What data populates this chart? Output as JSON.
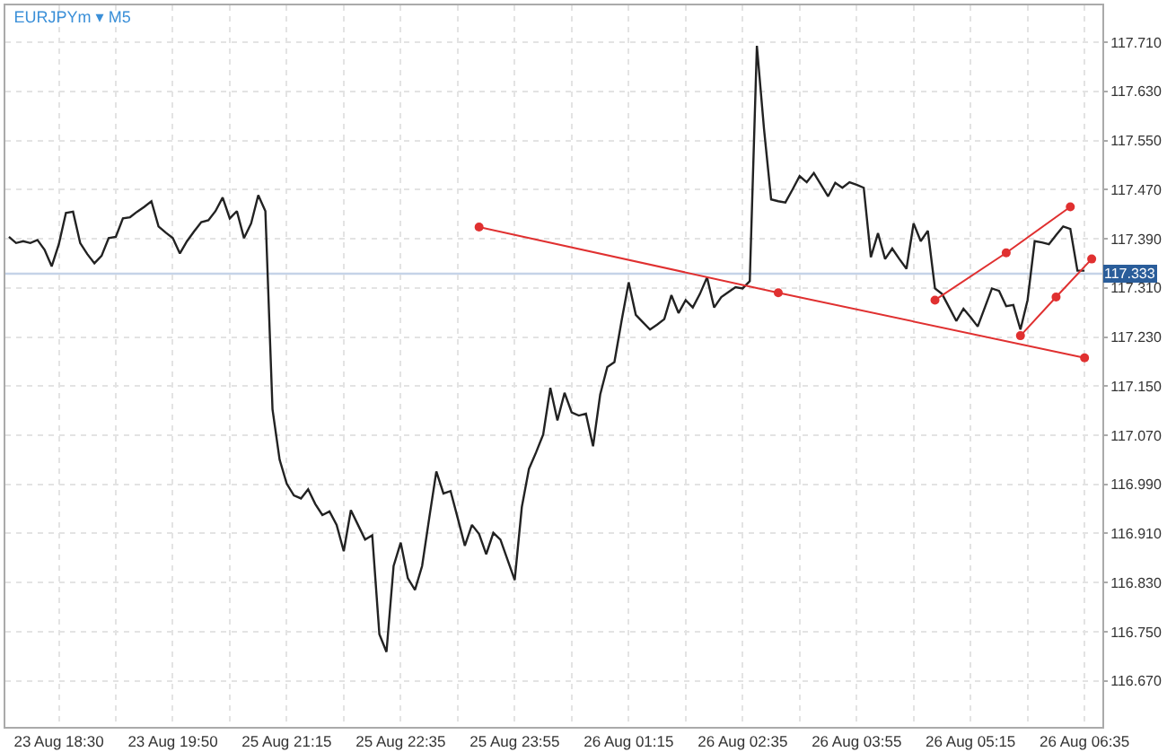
{
  "chart_data": {
    "type": "line",
    "title": "EURJPYm ▾ M5",
    "categories": [
      null,
      null,
      null,
      null,
      null,
      null,
      null,
      "23 Aug 18:30",
      null,
      null,
      null,
      null,
      null,
      null,
      null,
      null,
      null,
      null,
      null,
      null,
      null,
      null,
      null,
      "23 Aug 19:50",
      null,
      null,
      null,
      null,
      null,
      null,
      null,
      null,
      null,
      null,
      null,
      null,
      null,
      null,
      null,
      "25 Aug 21:15",
      null,
      null,
      null,
      null,
      null,
      null,
      null,
      null,
      null,
      null,
      null,
      null,
      null,
      null,
      null,
      "25 Aug 22:35",
      null,
      null,
      null,
      null,
      null,
      null,
      null,
      null,
      null,
      null,
      null,
      null,
      null,
      null,
      null,
      "25 Aug 23:55",
      null,
      null,
      null,
      null,
      null,
      null,
      null,
      null,
      null,
      null,
      null,
      null,
      null,
      null,
      null,
      "26 Aug 01:15",
      null,
      null,
      null,
      null,
      null,
      null,
      null,
      null,
      null,
      null,
      null,
      null,
      null,
      null,
      null,
      "26 Aug 02:35",
      null,
      null,
      null,
      null,
      null,
      null,
      null,
      null,
      null,
      null,
      null,
      null,
      null,
      null,
      null,
      "26 Aug 03:55",
      null,
      null,
      null,
      null,
      null,
      null,
      null,
      null,
      null,
      null,
      null,
      null,
      null,
      null,
      null,
      "26 Aug 05:15",
      null,
      null,
      null,
      null,
      null,
      null,
      null,
      null,
      null,
      null,
      null,
      null,
      null,
      null,
      null,
      "26 Aug 06:35",
      null,
      null
    ],
    "ylim": [
      116.595,
      117.77
    ],
    "yticks": [
      {
        "value": 116.67,
        "label": "116.670"
      },
      {
        "value": 116.75,
        "label": "116.750"
      },
      {
        "value": 116.83,
        "label": "116.830"
      },
      {
        "value": 116.91,
        "label": "116.910"
      },
      {
        "value": 116.99,
        "label": "116.990"
      },
      {
        "value": 117.07,
        "label": "117.070"
      },
      {
        "value": 117.15,
        "label": "117.150"
      },
      {
        "value": 117.23,
        "label": "117.230"
      },
      {
        "value": 117.31,
        "label": "117.310"
      },
      {
        "value": 117.39,
        "label": "117.390"
      },
      {
        "value": 117.47,
        "label": "117.470"
      },
      {
        "value": 117.55,
        "label": "117.550"
      },
      {
        "value": 117.63,
        "label": "117.630"
      },
      {
        "value": 117.71,
        "label": "117.710"
      }
    ],
    "grid": true,
    "ref_lines": [
      {
        "axis": "y",
        "value": 117.333,
        "label": "117.333",
        "color": "#c5d3e8"
      }
    ],
    "series": [
      {
        "color": "#222222",
        "marker": "none",
        "values": [
          117.393,
          117.383,
          117.386,
          117.383,
          117.388,
          117.372,
          117.345,
          117.381,
          117.432,
          117.434,
          117.383,
          117.365,
          117.35,
          117.362,
          117.391,
          117.393,
          117.423,
          117.425,
          117.434,
          117.442,
          117.451,
          117.41,
          117.4,
          117.391,
          117.366,
          117.386,
          117.402,
          117.417,
          117.42,
          117.435,
          117.457,
          117.423,
          117.435,
          117.391,
          117.415,
          117.461,
          117.435,
          117.112,
          117.03,
          116.991,
          116.972,
          116.967,
          116.982,
          116.958,
          116.94,
          116.946,
          116.924,
          116.881,
          116.948,
          116.924,
          116.9,
          116.907,
          116.746,
          116.717,
          116.857,
          116.895,
          116.837,
          116.818,
          116.857,
          116.935,
          117.011,
          116.975,
          116.979,
          116.935,
          116.89,
          116.924,
          116.909,
          116.876,
          116.911,
          116.9,
          116.867,
          116.834,
          116.953,
          117.015,
          117.042,
          117.071,
          117.147,
          117.094,
          117.139,
          117.107,
          117.102,
          117.105,
          117.052,
          117.136,
          117.181,
          117.189,
          117.256,
          117.319,
          117.266,
          117.254,
          117.242,
          117.25,
          117.259,
          117.298,
          117.269,
          117.29,
          117.278,
          117.3,
          117.327,
          117.278,
          117.295,
          117.303,
          117.311,
          117.309,
          117.321,
          117.704,
          117.569,
          117.454,
          117.451,
          117.449,
          117.47,
          117.492,
          117.482,
          117.497,
          117.478,
          117.459,
          117.481,
          117.473,
          117.482,
          117.478,
          117.473,
          117.36,
          117.399,
          117.357,
          117.374,
          117.357,
          117.341,
          117.415,
          117.386,
          117.403,
          117.309,
          117.3,
          117.278,
          117.256,
          117.276,
          117.262,
          117.247,
          117.278,
          117.309,
          117.305,
          117.28,
          117.282,
          117.242,
          117.29,
          117.386,
          117.384,
          117.381,
          117.396,
          117.41,
          117.406,
          117.338,
          117.338,
          null,
          null
        ]
      },
      {
        "color": "#e03030",
        "marker": "circle",
        "values": [
          null,
          null,
          null,
          null,
          null,
          null,
          null,
          null,
          null,
          null,
          null,
          null,
          null,
          null,
          null,
          null,
          null,
          null,
          null,
          null,
          null,
          null,
          null,
          null,
          null,
          null,
          null,
          null,
          null,
          null,
          null,
          null,
          null,
          null,
          null,
          null,
          null,
          null,
          null,
          null,
          null,
          null,
          null,
          null,
          null,
          null,
          null,
          null,
          null,
          null,
          null,
          null,
          null,
          null,
          null,
          null,
          null,
          null,
          null,
          null,
          null,
          null,
          null,
          null,
          null,
          null,
          117.409,
          null,
          null,
          null,
          null,
          null,
          null,
          null,
          null,
          null,
          null,
          null,
          null,
          null,
          null,
          null,
          null,
          null,
          null,
          null,
          null,
          null,
          null,
          null,
          null,
          null,
          null,
          null,
          null,
          null,
          null,
          null,
          null,
          null,
          null,
          null,
          null,
          null,
          null,
          null,
          null,
          null,
          117.302,
          null,
          null,
          null,
          null,
          null,
          null,
          null,
          null,
          null,
          null,
          null,
          null,
          null,
          null,
          null,
          null,
          null,
          null,
          null,
          null,
          null,
          null,
          null,
          null,
          null,
          null,
          null,
          null,
          null,
          null,
          null,
          null,
          null,
          null,
          null,
          null,
          null,
          null,
          null,
          null,
          null,
          null,
          117.196,
          null,
          null
        ]
      },
      {
        "color": "#e03030",
        "marker": "circle",
        "values": [
          null,
          null,
          null,
          null,
          null,
          null,
          null,
          null,
          null,
          null,
          null,
          null,
          null,
          null,
          null,
          null,
          null,
          null,
          null,
          null,
          null,
          null,
          null,
          null,
          null,
          null,
          null,
          null,
          null,
          null,
          null,
          null,
          null,
          null,
          null,
          null,
          null,
          null,
          null,
          null,
          null,
          null,
          null,
          null,
          null,
          null,
          null,
          null,
          null,
          null,
          null,
          null,
          null,
          null,
          null,
          null,
          null,
          null,
          null,
          null,
          null,
          null,
          null,
          null,
          null,
          null,
          null,
          null,
          null,
          null,
          null,
          null,
          null,
          null,
          null,
          null,
          null,
          null,
          null,
          null,
          null,
          null,
          null,
          null,
          null,
          null,
          null,
          null,
          null,
          null,
          null,
          null,
          null,
          null,
          null,
          null,
          null,
          null,
          null,
          null,
          null,
          null,
          null,
          null,
          null,
          null,
          null,
          null,
          null,
          null,
          null,
          null,
          null,
          null,
          null,
          null,
          null,
          null,
          null,
          null,
          null,
          null,
          null,
          null,
          null,
          null,
          null,
          null,
          null,
          null,
          117.29,
          null,
          null,
          null,
          null,
          null,
          null,
          null,
          null,
          null,
          117.367,
          null,
          null,
          null,
          null,
          null,
          null,
          null,
          null,
          117.442,
          null,
          null,
          null,
          null
        ]
      },
      {
        "color": "#e03030",
        "marker": "circle",
        "values": [
          null,
          null,
          null,
          null,
          null,
          null,
          null,
          null,
          null,
          null,
          null,
          null,
          null,
          null,
          null,
          null,
          null,
          null,
          null,
          null,
          null,
          null,
          null,
          null,
          null,
          null,
          null,
          null,
          null,
          null,
          null,
          null,
          null,
          null,
          null,
          null,
          null,
          null,
          null,
          null,
          null,
          null,
          null,
          null,
          null,
          null,
          null,
          null,
          null,
          null,
          null,
          null,
          null,
          null,
          null,
          null,
          null,
          null,
          null,
          null,
          null,
          null,
          null,
          null,
          null,
          null,
          null,
          null,
          null,
          null,
          null,
          null,
          null,
          null,
          null,
          null,
          null,
          null,
          null,
          null,
          null,
          null,
          null,
          null,
          null,
          null,
          null,
          null,
          null,
          null,
          null,
          null,
          null,
          null,
          null,
          null,
          null,
          null,
          null,
          null,
          null,
          null,
          null,
          null,
          null,
          null,
          null,
          null,
          null,
          null,
          null,
          null,
          null,
          null,
          null,
          null,
          null,
          null,
          null,
          null,
          null,
          null,
          null,
          null,
          null,
          null,
          null,
          null,
          null,
          null,
          null,
          null,
          null,
          null,
          null,
          null,
          null,
          null,
          null,
          null,
          null,
          null,
          117.232,
          null,
          null,
          null,
          null,
          117.295,
          null,
          null,
          null,
          null,
          117.357,
          null
        ]
      }
    ]
  }
}
